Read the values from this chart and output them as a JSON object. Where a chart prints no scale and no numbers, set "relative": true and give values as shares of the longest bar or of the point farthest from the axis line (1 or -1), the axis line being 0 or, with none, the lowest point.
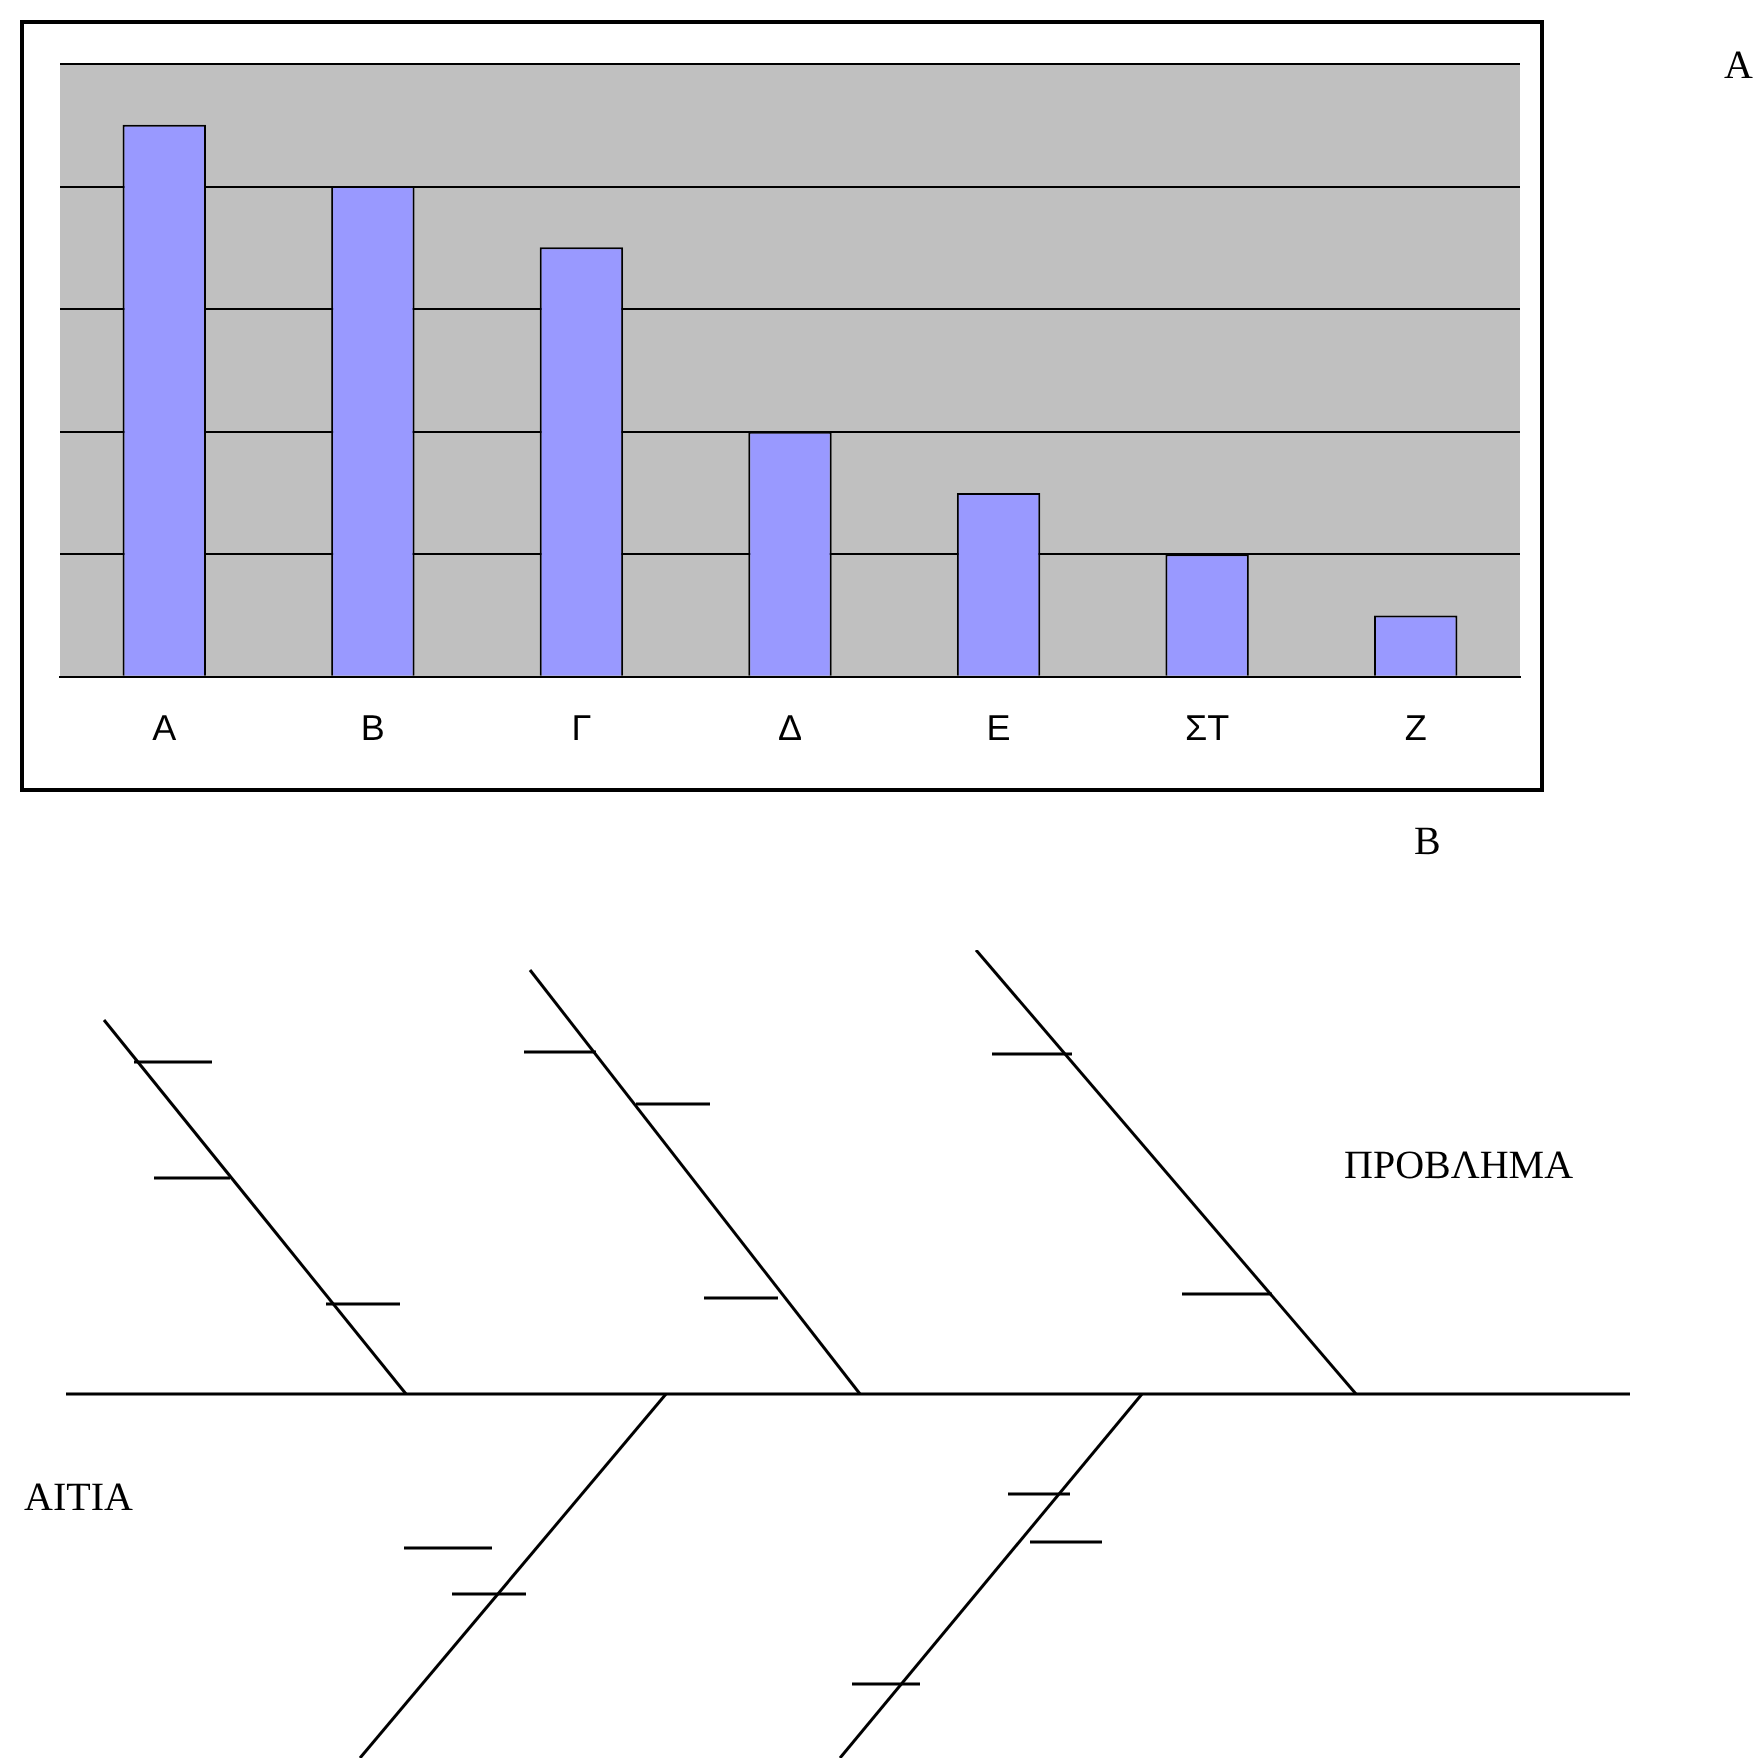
{
  "chart_data": {
    "type": "bar",
    "categories": [
      "Α",
      "Β",
      "Γ",
      "Δ",
      "Ε",
      "ΣΤ",
      "Ζ"
    ],
    "values": [
      1,
      0.889,
      0.778,
      0.444,
      0.333,
      0.222,
      0.111
    ],
    "color": "#9999ff",
    "relative": true,
    "grid": "y",
    "legend": false,
    "annotations": [
      "A",
      "B",
      "ΠΡΟΒΛΗΜΑ",
      "ΑΙΤΙΑ"
    ]
  }
}
